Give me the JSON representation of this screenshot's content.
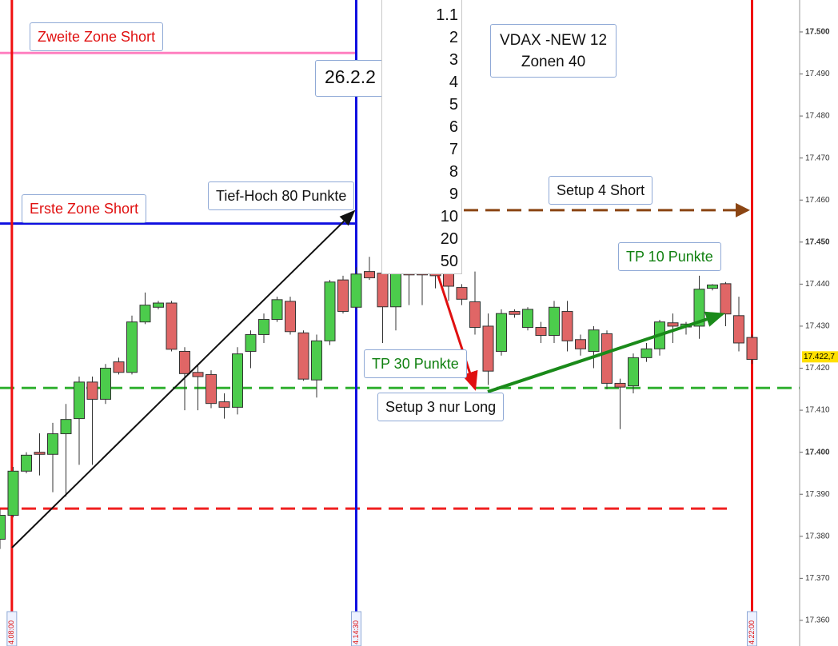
{
  "chart_data": {
    "type": "candlestick",
    "ylim": [
      17.3539,
      17.5076
    ],
    "yticks": [
      {
        "value": 17.36,
        "label": "17.360"
      },
      {
        "value": 17.37,
        "label": "17.370"
      },
      {
        "value": 17.38,
        "label": "17.380"
      },
      {
        "value": 17.39,
        "label": "17.390"
      },
      {
        "value": 17.4,
        "label": "17.400"
      },
      {
        "value": 17.41,
        "label": "17.410"
      },
      {
        "value": 17.42,
        "label": "17.420"
      },
      {
        "value": 17.43,
        "label": "17.430"
      },
      {
        "value": 17.44,
        "label": "17.440"
      },
      {
        "value": 17.45,
        "label": "17.450"
      },
      {
        "value": 17.46,
        "label": "17.460"
      },
      {
        "value": 17.47,
        "label": "17.470"
      },
      {
        "value": 17.48,
        "label": "17.480"
      },
      {
        "value": 17.49,
        "label": "17.490"
      },
      {
        "value": 17.5,
        "label": "17.500"
      }
    ],
    "up_color": "#4ccc4c",
    "down_color": "#e06666",
    "open": [
      17.3793,
      17.385,
      17.3955,
      17.4,
      17.3995,
      17.4044,
      17.408,
      17.4167,
      17.4126,
      17.4215,
      17.419,
      17.431,
      17.4345,
      17.4355,
      17.424,
      17.419,
      17.4185,
      17.412,
      17.4107,
      17.424,
      17.428,
      17.4316,
      17.4359,
      17.4284,
      17.4172,
      17.4265,
      17.441,
      17.4345,
      17.443,
      17.4426,
      17.4346,
      17.4428,
      17.4428,
      17.443,
      17.443,
      17.4392,
      17.4358,
      17.43,
      17.424,
      17.4335,
      17.4297,
      17.4297,
      17.4278,
      17.4335,
      17.4268,
      17.424,
      17.4282,
      17.4164,
      17.4158,
      17.4225,
      17.4246,
      17.4308,
      17.4298,
      17.43,
      17.439,
      17.4401,
      17.4325,
      17.4273
    ],
    "high": [
      17.3865,
      17.3965,
      17.4,
      17.4045,
      17.407,
      17.4115,
      17.418,
      17.418,
      17.421,
      17.4225,
      17.4325,
      17.438,
      17.436,
      17.436,
      17.425,
      17.421,
      17.4195,
      17.414,
      17.425,
      17.429,
      17.433,
      17.437,
      17.437,
      17.429,
      17.428,
      17.441,
      17.442,
      17.444,
      17.4465,
      17.445,
      17.4445,
      17.444,
      17.444,
      17.4445,
      17.4445,
      17.44,
      17.443,
      17.433,
      17.434,
      17.434,
      17.4345,
      17.431,
      17.436,
      17.436,
      17.428,
      17.43,
      17.429,
      17.4175,
      17.4235,
      17.426,
      17.4315,
      17.433,
      17.431,
      17.442,
      17.44,
      17.4405,
      17.437,
      17.428
    ],
    "low": [
      17.377,
      17.3845,
      17.395,
      17.3945,
      17.3905,
      17.3895,
      17.397,
      17.397,
      17.4115,
      17.4185,
      17.4185,
      17.4305,
      17.434,
      17.424,
      17.41,
      17.41,
      17.4105,
      17.408,
      17.409,
      17.42,
      17.426,
      17.431,
      17.428,
      17.417,
      17.413,
      17.4255,
      17.433,
      17.434,
      17.441,
      17.426,
      17.429,
      17.435,
      17.435,
      17.439,
      17.436,
      17.435,
      17.428,
      17.416,
      17.423,
      17.432,
      17.429,
      17.426,
      17.426,
      17.424,
      17.423,
      17.42,
      17.415,
      17.4055,
      17.414,
      17.4215,
      17.423,
      17.426,
      17.428,
      17.427,
      17.4385,
      17.43,
      17.424,
      17.421
    ],
    "close": [
      17.385,
      17.3955,
      17.3993,
      17.3995,
      17.4044,
      17.4078,
      17.4167,
      17.4126,
      17.42,
      17.419,
      17.431,
      17.435,
      17.4355,
      17.4245,
      17.4187,
      17.418,
      17.4116,
      17.4107,
      17.4234,
      17.428,
      17.4316,
      17.4363,
      17.4287,
      17.4174,
      17.4265,
      17.4405,
      17.4335,
      17.4424,
      17.4415,
      17.4346,
      17.4426,
      17.4422,
      17.4422,
      17.442,
      17.4395,
      17.4364,
      17.4297,
      17.4193,
      17.433,
      17.4328,
      17.434,
      17.4278,
      17.4345,
      17.4265,
      17.4246,
      17.4291,
      17.4164,
      17.4155,
      17.4225,
      17.4246,
      17.431,
      17.43,
      17.4305,
      17.4388,
      17.4398,
      17.4329,
      17.426,
      17.4221
    ],
    "levels": [
      {
        "value": 17.495,
        "color": "#ff80c0",
        "style": "solid"
      },
      {
        "value": 17.4544,
        "color": "#1010e0",
        "style": "solid"
      },
      {
        "value": 17.4576,
        "color": "#8b4513",
        "style": "dashed"
      },
      {
        "value": 17.4153,
        "color": "#30b030",
        "style": "dashed"
      },
      {
        "value": 17.3866,
        "color": "#f02020",
        "style": "dashed"
      }
    ],
    "vlines": [
      {
        "x": 0.9,
        "color": "#f01010",
        "label": "4.08:00"
      },
      {
        "x": 27,
        "color": "#1010e0",
        "label": "4.14:30"
      },
      {
        "x": 57,
        "color": "#f01010",
        "label": "4.22:00"
      }
    ],
    "last_price": {
      "value": 17.4227,
      "label": "17.422,7"
    },
    "annotations": {
      "zone2": "Zweite Zone Short",
      "zone1": "Erste Zone Short",
      "tief_hoch": "Tief-Hoch 80 Punkte",
      "date": "26.2.2",
      "list": [
        "1.1",
        "2",
        "3",
        "4",
        "5",
        "6",
        "7",
        "8",
        "9",
        "10",
        "20",
        "50"
      ],
      "vdax": [
        "VDAX -NEW 12",
        "Zonen 40"
      ],
      "setup4": "Setup 4 Short",
      "tp10": "TP 10 Punkte",
      "tp30": "TP 30 Punkte",
      "setup3": "Setup 3 nur Long"
    }
  }
}
